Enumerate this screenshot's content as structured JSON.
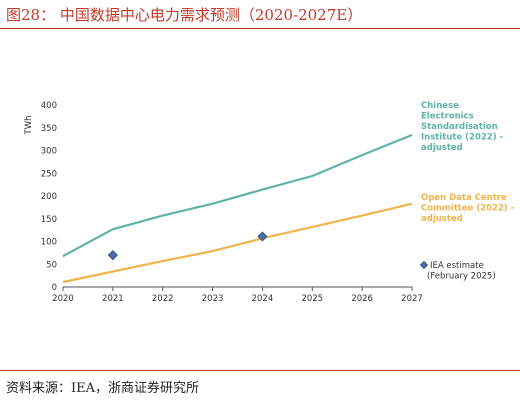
{
  "title": "图28：  中国数据中心电力需求预测（2020-2027E）",
  "source": "资料来源：IEA，浙商证券研究所",
  "chart_data": {
    "type": "line",
    "ylabel": "TWh",
    "ylim": [
      0,
      400
    ],
    "yticks": [
      0,
      50,
      100,
      150,
      200,
      250,
      300,
      350,
      400
    ],
    "x": [
      "2020",
      "2021",
      "2022",
      "2023",
      "2024",
      "2025",
      "2026",
      "2027"
    ],
    "grid": false,
    "series": [
      {
        "name": "Chinese Electronics Standardisation Institute (2022) - adjusted",
        "label_lines": [
          "Chinese",
          "Electronics",
          "Standardisation",
          "Institute (2022) -",
          "adjusted"
        ],
        "color": "#5fb3a6",
        "values": [
          68,
          127,
          157,
          183,
          214,
          244,
          290,
          334
        ]
      },
      {
        "name": "Open Data Centre Committee (2022) - adjusted",
        "label_lines": [
          "Open Data Centre",
          "Committee (2022) -",
          "adjusted"
        ],
        "color": "#f0b44c",
        "values": [
          11,
          34,
          57,
          79,
          107,
          132,
          157,
          183
        ]
      }
    ],
    "markers": {
      "name": "IEA estimate (February 2025)",
      "label_lines": [
        "IEA estimate",
        "(February 2025)"
      ],
      "color": "#4a6fa5",
      "points": [
        {
          "x": "2021",
          "y": 70
        },
        {
          "x": "2024",
          "y": 111
        }
      ]
    }
  }
}
